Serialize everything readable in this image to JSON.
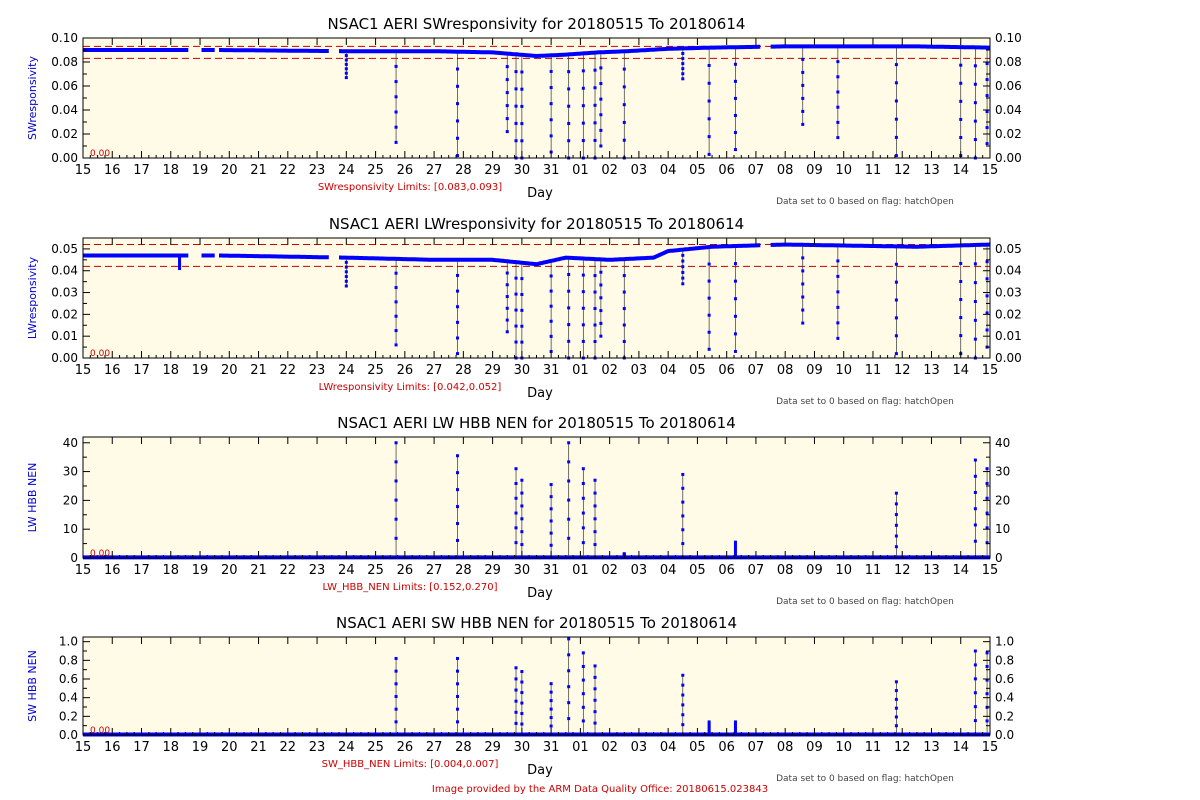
{
  "footer": "Image provided by the ARM Data Quality Office: 20180615.023843",
  "colors": {
    "panel_bg": "#fffbe6",
    "series": "#0000ff",
    "limit_line": "#cc0000",
    "limit_text": "#cc0000",
    "series_label": "#0000cc",
    "text": "#000000",
    "note": "#444444"
  },
  "x_axis": {
    "label": "Day",
    "ticks": [
      "15",
      "16",
      "17",
      "18",
      "19",
      "20",
      "21",
      "22",
      "23",
      "24",
      "25",
      "26",
      "27",
      "28",
      "29",
      "30",
      "31",
      "01",
      "02",
      "03",
      "04",
      "05",
      "06",
      "07",
      "08",
      "09",
      "10",
      "11",
      "12",
      "13",
      "14",
      "15"
    ]
  },
  "chart_data": [
    {
      "type": "line",
      "title": "NSAC1 AERI SWresponsivity for 20180515 To 20180614",
      "ylabel": "SWresponsivity",
      "ylim": [
        0,
        0.1
      ],
      "yticks": [
        "0.00",
        "0.02",
        "0.04",
        "0.06",
        "0.08",
        "0.10"
      ],
      "limits": [
        0.083,
        0.093
      ],
      "limits_label": "SWresponsivity Limits: [0.083,0.093]",
      "zero_label": "0.00",
      "note": "Data set to 0 based on flag: hatchOpen",
      "baseline": [
        [
          0,
          0.09
        ],
        [
          3.5,
          0.09
        ],
        [
          4.6,
          0.09
        ],
        [
          9,
          0.089
        ],
        [
          12,
          0.089
        ],
        [
          14,
          0.088
        ],
        [
          15.5,
          0.085
        ],
        [
          16.4,
          0.086
        ],
        [
          17.6,
          0.088
        ],
        [
          18.6,
          0.089
        ],
        [
          20,
          0.091
        ],
        [
          21.5,
          0.092
        ],
        [
          24,
          0.093
        ],
        [
          28.5,
          0.093
        ],
        [
          31,
          0.092
        ]
      ],
      "gaps": [
        [
          3.6,
          4.0
        ],
        [
          4.5,
          4.6
        ],
        [
          8.4,
          8.7
        ],
        [
          23.2,
          23.5
        ]
      ],
      "drops": [
        [
          9.0,
          0.067
        ],
        [
          10.7,
          0.013
        ],
        [
          12.8,
          0.002
        ],
        [
          14.5,
          0.022
        ],
        [
          14.8,
          0.0
        ],
        [
          15.0,
          0.0
        ],
        [
          16.0,
          0.005
        ],
        [
          16.6,
          0.0
        ],
        [
          17.1,
          0.0
        ],
        [
          17.5,
          0.0
        ],
        [
          17.7,
          0.01
        ],
        [
          18.5,
          0.0
        ],
        [
          20.5,
          0.066
        ],
        [
          21.4,
          0.003
        ],
        [
          22.3,
          0.007
        ],
        [
          24.6,
          0.028
        ],
        [
          25.8,
          0.017
        ],
        [
          27.8,
          0.002
        ],
        [
          30.0,
          0.002
        ],
        [
          30.5,
          0.0
        ],
        [
          30.9,
          0.012
        ]
      ]
    },
    {
      "type": "line",
      "title": "NSAC1 AERI LWresponsivity for 20180515 To 20180614",
      "ylabel": "LWresponsivity",
      "ylim": [
        0,
        0.055
      ],
      "yticks": [
        "0.00",
        "0.01",
        "0.02",
        "0.03",
        "0.04",
        "0.05"
      ],
      "limits": [
        0.042,
        0.052
      ],
      "limits_label": "LWresponsivity Limits: [0.042,0.052]",
      "zero_label": "0.00",
      "note": "Data set to 0 based on flag: hatchOpen",
      "baseline": [
        [
          0,
          0.047
        ],
        [
          3.3,
          0.047
        ],
        [
          4.6,
          0.047
        ],
        [
          9,
          0.046
        ],
        [
          12,
          0.045
        ],
        [
          14,
          0.045
        ],
        [
          15.5,
          0.043
        ],
        [
          16.5,
          0.046
        ],
        [
          18,
          0.045
        ],
        [
          19.5,
          0.046
        ],
        [
          20,
          0.049
        ],
        [
          21.5,
          0.051
        ],
        [
          24,
          0.052
        ],
        [
          28.5,
          0.051
        ],
        [
          31,
          0.052
        ]
      ],
      "gaps": [
        [
          3.6,
          4.0
        ],
        [
          4.5,
          4.6
        ],
        [
          8.4,
          8.7
        ],
        [
          23.2,
          23.5
        ]
      ],
      "drops": [
        [
          3.3,
          0.041
        ],
        [
          9.0,
          0.033
        ],
        [
          10.7,
          0.006
        ],
        [
          12.8,
          0.002
        ],
        [
          14.5,
          0.012
        ],
        [
          14.8,
          0.0
        ],
        [
          15.0,
          0.0
        ],
        [
          16.0,
          0.003
        ],
        [
          16.6,
          0.0
        ],
        [
          17.1,
          0.0
        ],
        [
          17.5,
          0.0
        ],
        [
          17.7,
          0.01
        ],
        [
          18.5,
          0.0
        ],
        [
          20.5,
          0.034
        ],
        [
          21.4,
          0.004
        ],
        [
          22.3,
          0.003
        ],
        [
          24.6,
          0.016
        ],
        [
          25.8,
          0.009
        ],
        [
          27.8,
          0.002
        ],
        [
          30.0,
          0.002
        ],
        [
          30.5,
          0.0
        ],
        [
          30.9,
          0.005
        ]
      ]
    },
    {
      "type": "line",
      "title": "NSAC1 AERI LW HBB NEN for 20180515 To 20180614",
      "ylabel": "LW HBB NEN",
      "ylim": [
        0,
        42
      ],
      "yticks": [
        "0",
        "10",
        "20",
        "30",
        "40"
      ],
      "limits": [
        0.152,
        0.27
      ],
      "limits_label": "LW_HBB_NEN Limits: [0.152,0.270]",
      "zero_label": "0.00",
      "note": "Data set to 0 based on flag: hatchOpen",
      "baseline": [
        [
          0,
          0.2
        ],
        [
          31,
          0.2
        ]
      ],
      "gaps": [],
      "spikes": [
        [
          10.7,
          40
        ],
        [
          12.8,
          35.5
        ],
        [
          14.8,
          31
        ],
        [
          15.0,
          27
        ],
        [
          16.0,
          25.5
        ],
        [
          16.6,
          40
        ],
        [
          17.1,
          31
        ],
        [
          17.5,
          27
        ],
        [
          18.5,
          1.5
        ],
        [
          20.5,
          29
        ],
        [
          22.3,
          5.5
        ],
        [
          27.8,
          22.5
        ],
        [
          30.5,
          34
        ],
        [
          30.9,
          31
        ]
      ]
    },
    {
      "type": "line",
      "title": "NSAC1 AERI SW HBB NEN for 20180515 To 20180614",
      "ylabel": "SW HBB NEN",
      "ylim": [
        0,
        1.05
      ],
      "yticks": [
        "0.0",
        "0.2",
        "0.4",
        "0.6",
        "0.8",
        "1.0"
      ],
      "limits": [
        0.004,
        0.007
      ],
      "limits_label": "SW_HBB_NEN Limits: [0.004,0.007]",
      "zero_label": "0.00",
      "note": "Data set to 0 based on flag: hatchOpen",
      "baseline": [
        [
          0,
          0.005
        ],
        [
          31,
          0.005
        ]
      ],
      "gaps": [],
      "spikes": [
        [
          10.7,
          0.82
        ],
        [
          12.8,
          0.82
        ],
        [
          14.8,
          0.72
        ],
        [
          15.0,
          0.68
        ],
        [
          16.0,
          0.55
        ],
        [
          16.6,
          1.03
        ],
        [
          17.1,
          0.88
        ],
        [
          17.5,
          0.74
        ],
        [
          20.5,
          0.64
        ],
        [
          21.4,
          0.14
        ],
        [
          22.3,
          0.14
        ],
        [
          27.8,
          0.57
        ],
        [
          30.5,
          0.9
        ],
        [
          30.9,
          0.88
        ]
      ]
    }
  ]
}
